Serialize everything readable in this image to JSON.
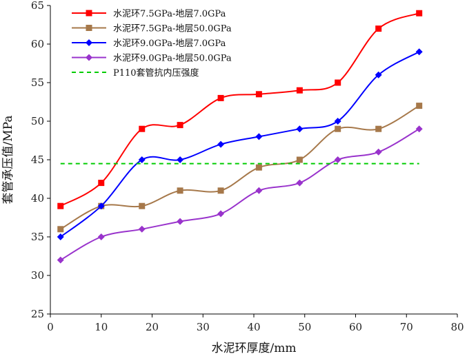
{
  "chart_data": {
    "type": "line",
    "title": "",
    "xlabel": "水泥环厚度/mm",
    "ylabel": "套管承压值/MPa",
    "xlim": [
      0,
      80
    ],
    "ylim": [
      25,
      65
    ],
    "xticks": [
      0,
      10,
      20,
      30,
      40,
      50,
      60,
      70,
      80
    ],
    "yticks": [
      25,
      30,
      35,
      40,
      45,
      50,
      55,
      60,
      65
    ],
    "grid": false,
    "legend_position": "top-left",
    "x": [
      2,
      10,
      18,
      25.5,
      33.5,
      41,
      49,
      56.5,
      64.5,
      72.5
    ],
    "series": [
      {
        "name": "水泥环7.5GPa-地层7.0GPa",
        "color": "#ff0000",
        "marker": "square",
        "values": [
          39,
          42,
          49,
          49.5,
          53,
          53.5,
          54,
          55,
          62,
          64
        ]
      },
      {
        "name": "水泥环7.5GPa-地层50.0GPa",
        "color": "#a6784a",
        "marker": "square",
        "values": [
          36,
          39,
          39,
          41,
          41,
          44,
          45,
          49,
          49,
          52
        ]
      },
      {
        "name": "水泥环9.0GPa-地层7.0GPa",
        "color": "#0000ff",
        "marker": "diamond",
        "values": [
          35,
          39,
          45,
          45,
          47,
          48,
          49,
          50,
          56,
          59
        ]
      },
      {
        "name": "水泥环9.0GPa-地层50.0GPa",
        "color": "#9933cc",
        "marker": "diamond",
        "values": [
          32,
          35,
          36,
          37,
          38,
          41,
          42,
          45,
          46,
          49
        ]
      },
      {
        "name": "P110套管抗内压强度",
        "color": "#00cc00",
        "marker": "none",
        "dashed": true,
        "x": [
          2,
          72.5
        ],
        "values": [
          44.5,
          44.5
        ]
      }
    ]
  }
}
